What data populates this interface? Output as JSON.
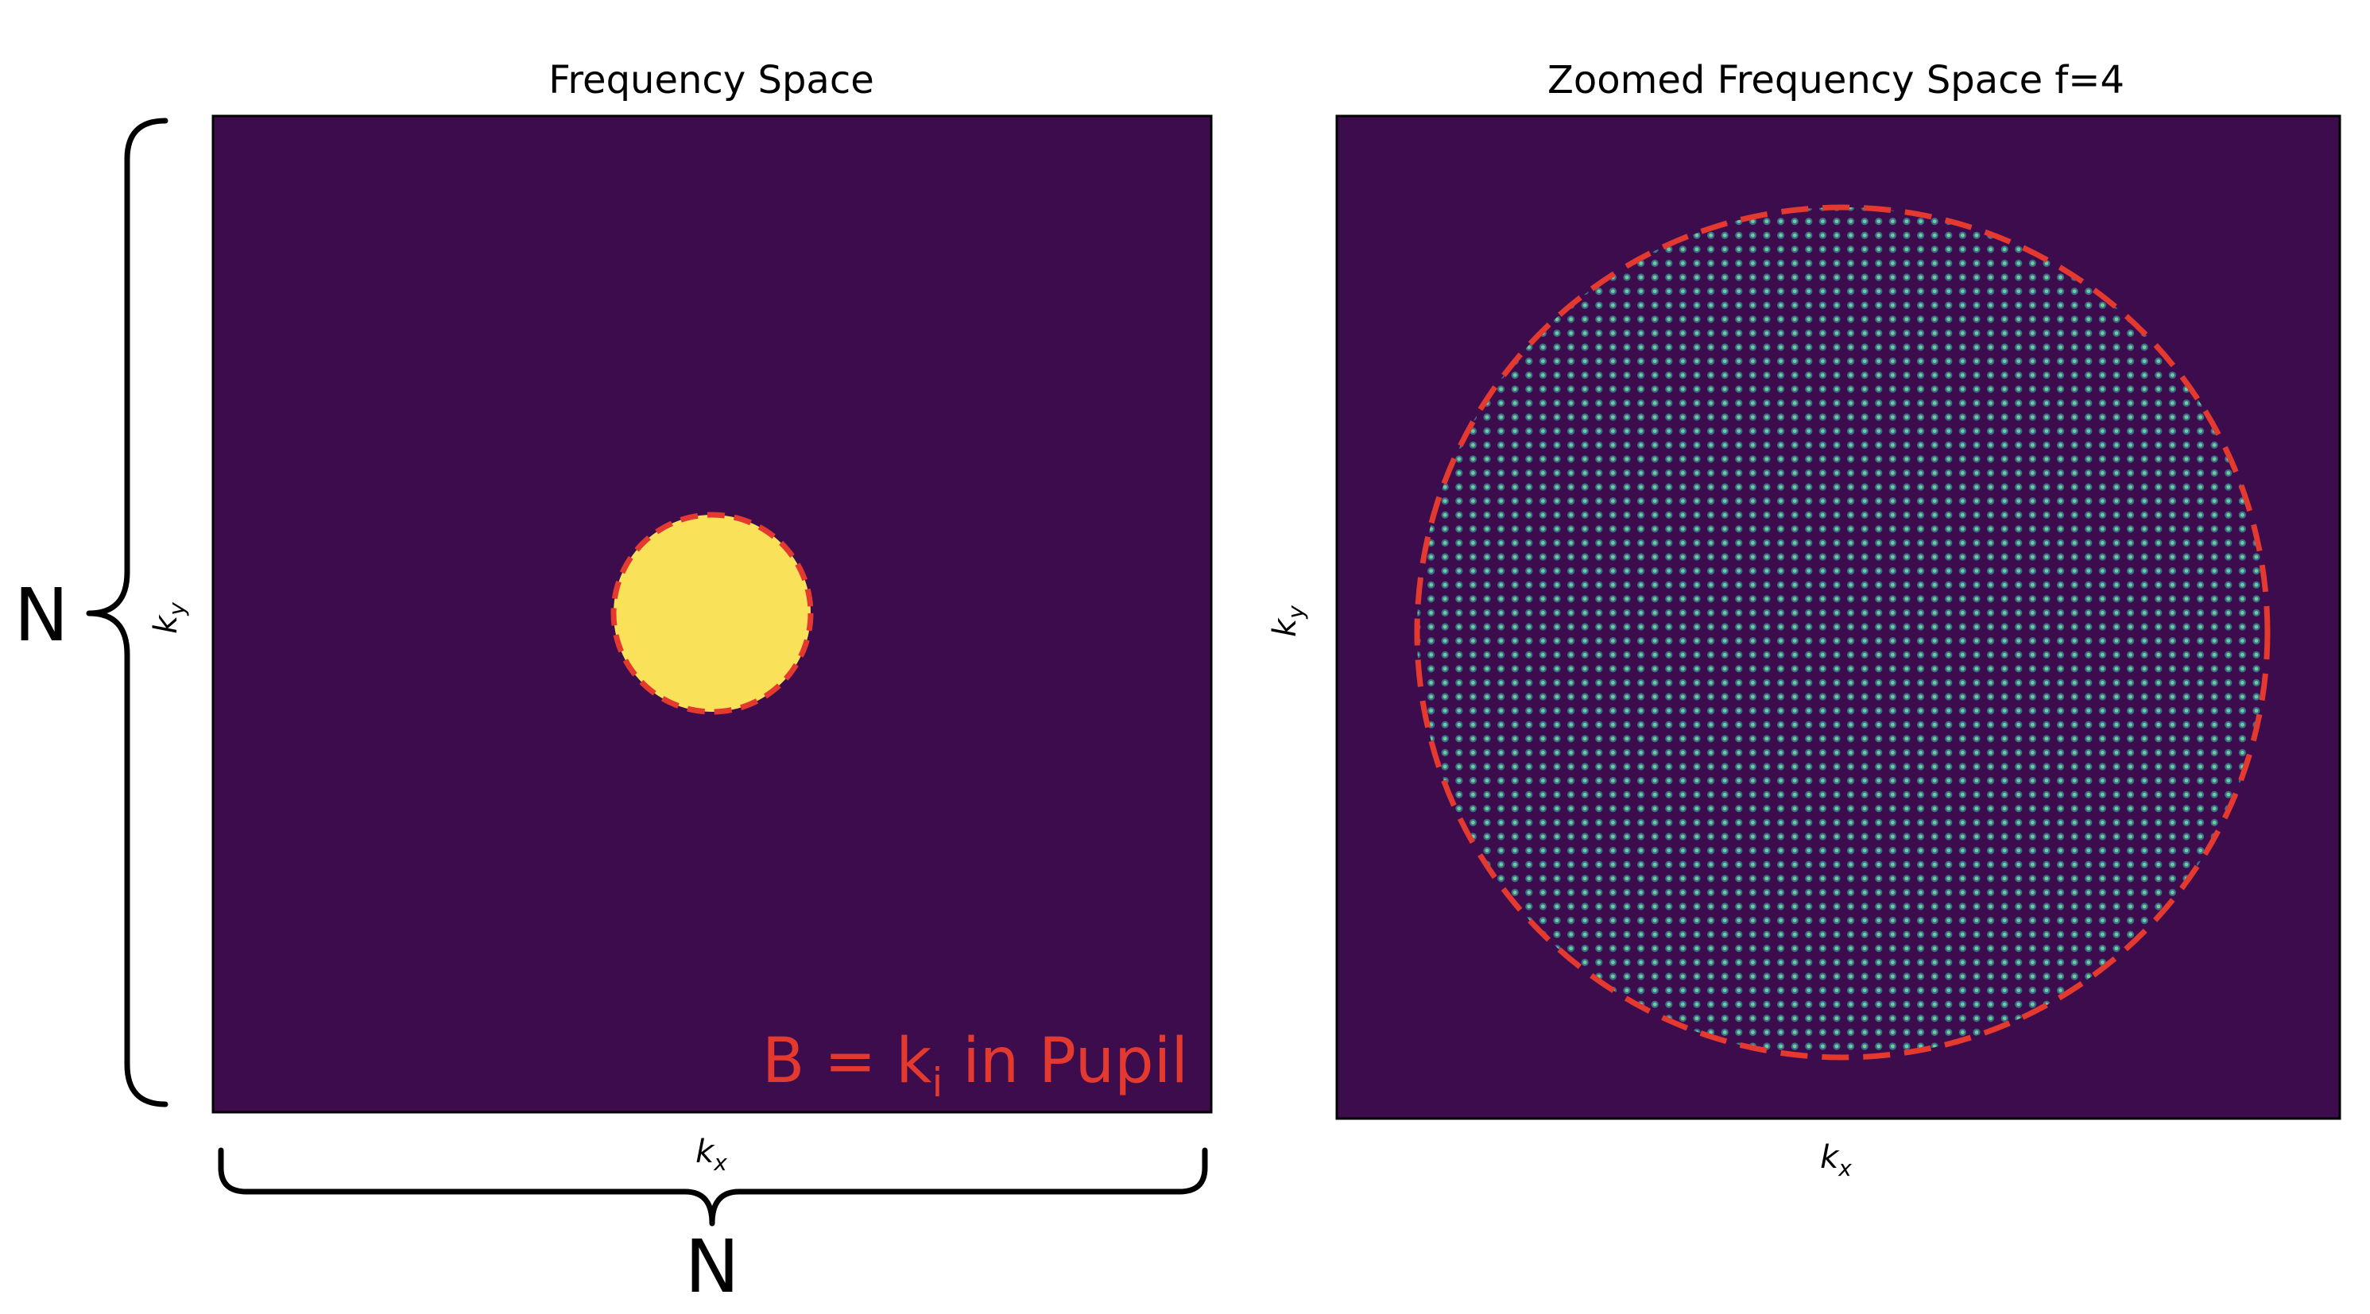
{
  "colors": {
    "background": "#3d0c4c",
    "pupil": "#f9e15a",
    "outline": "#e3392e",
    "sample_dot": "#6fcf8f",
    "sample_glow": "#3b6e8f"
  },
  "panel_left": {
    "title": "Frequency Space",
    "xlabel": {
      "base": "k",
      "sub": "x"
    },
    "ylabel": {
      "base": "k",
      "sub": "y"
    },
    "annotation": {
      "prefix": "B = k",
      "sub": "i",
      "suffix": " in Pupil"
    }
  },
  "panel_right": {
    "title": "Zoomed Frequency Space f=4",
    "xlabel": {
      "base": "k",
      "sub": "x"
    },
    "ylabel": {
      "base": "k",
      "sub": "y"
    }
  },
  "dimensions": {
    "width_label": "N",
    "height_label": "N"
  },
  "icons": {
    "left_brace": "curly-brace-left-icon",
    "bottom_brace": "curly-brace-bottom-icon"
  }
}
